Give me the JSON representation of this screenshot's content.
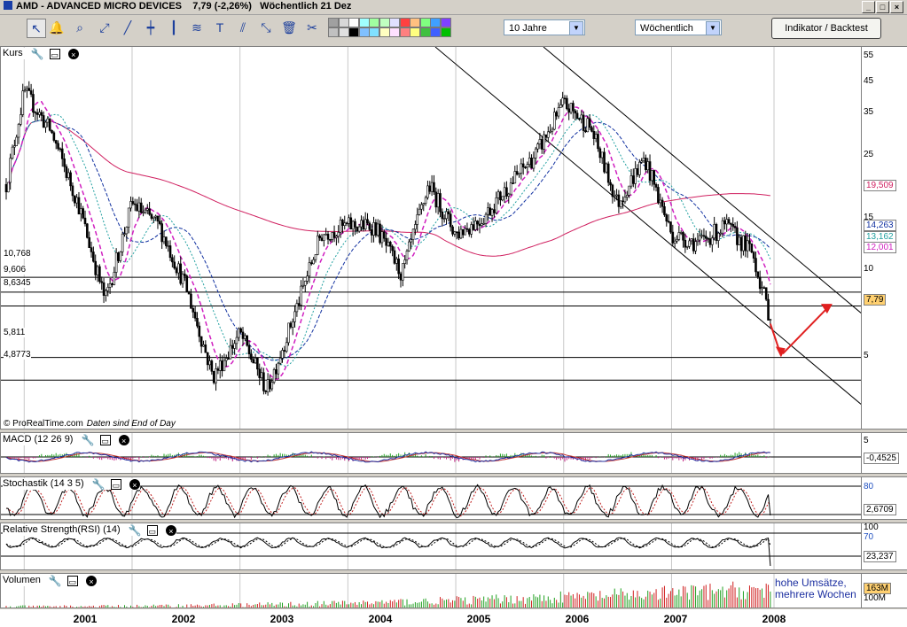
{
  "window": {
    "title": "AMD - ADVANCED MICRO DEVICES",
    "quote": "7,79 (-2,26%)",
    "period_info": "Wöchentlich  21 Dez"
  },
  "toolbar": {
    "icons": [
      "pointer-icon",
      "bell-icon",
      "zoom-icon",
      "trendline-icon",
      "line-icon",
      "horizontal-line-icon",
      "vertical-line-icon",
      "channel-icon",
      "text-icon",
      "fibonacci-icon",
      "regression-icon",
      "trash-icon",
      "tools-icon"
    ],
    "swatch_colors": [
      "#a0a0a0",
      "#c0c0c0",
      "#d8d8d8",
      "#e0e0e0",
      "#ffffff",
      "#000000",
      "#a0ffff",
      "#80c0ff",
      "#a0ffa0",
      "#80e0ff",
      "#c0ffc0",
      "#ffffc0",
      "#e0e0ff",
      "#ffe0ff",
      "#ff4040",
      "#ff8080",
      "#ffc080",
      "#ffff80",
      "#80ff80",
      "#40c040",
      "#40a0ff",
      "#4060ff",
      "#8040ff",
      "#00c000"
    ],
    "range_select": "10 Jahre",
    "interval_select": "Wöchentlich",
    "indicator_button": "Indikator / Backtest"
  },
  "price_panel": {
    "title": "Kurs",
    "y_ticks": [
      "55",
      "45",
      "35",
      "25",
      "15",
      "10",
      "5"
    ],
    "levels": [
      "10,768",
      "9,606",
      "8,6345",
      "5,811",
      "4,8773"
    ],
    "badges": [
      {
        "text": "19,509",
        "color": "#d02060"
      },
      {
        "text": "14,263",
        "color": "#1030a0"
      },
      {
        "text": "13,162",
        "color": "#20a0a0"
      },
      {
        "text": "12,001",
        "color": "#d020c0"
      },
      {
        "text": "7,79",
        "color": "#000000",
        "bg": "#ffd070"
      }
    ],
    "credit": "© ProRealTime.com",
    "credit_note": "Daten sind End of Day"
  },
  "macd_panel": {
    "title": "MACD (12 26 9)",
    "tick": "5",
    "value": "-0,4525"
  },
  "stoch_panel": {
    "title": "Stochastik (14 3 5)",
    "tick": "80",
    "value": "2,6709"
  },
  "rsi_panel": {
    "title": "Relative Strength(RSI) (14)",
    "tick_top": "100",
    "tick": "70",
    "value": "23,237"
  },
  "volume_panel": {
    "title": "Volumen",
    "value": "163M",
    "tick": "100M",
    "note_line1": "hohe Umsätze,",
    "note_line2": "mehrere Wochen"
  },
  "x_axis": [
    "2001",
    "2002",
    "2003",
    "2004",
    "2005",
    "2006",
    "2007",
    "2008"
  ],
  "chart_data": {
    "type": "line",
    "title": "AMD - ADVANCED MICRO DEVICES",
    "x": [
      "2000-11",
      "2001-01",
      "2001-04",
      "2001-07",
      "2001-10",
      "2002-01",
      "2002-04",
      "2002-07",
      "2002-10",
      "2003-01",
      "2003-04",
      "2003-07",
      "2003-10",
      "2004-01",
      "2004-04",
      "2004-07",
      "2004-10",
      "2005-01",
      "2005-04",
      "2005-07",
      "2005-10",
      "2006-01",
      "2006-04",
      "2006-07",
      "2006-10",
      "2007-01",
      "2007-04",
      "2007-07",
      "2007-10",
      "2007-12"
    ],
    "series": [
      {
        "values": [
          22,
          45,
          33,
          19,
          9,
          19,
          16,
          10,
          5,
          7,
          4.5,
          8,
          15,
          16,
          16,
          11,
          22,
          15,
          17,
          22,
          28,
          41,
          34,
          19,
          27,
          15,
          14,
          16,
          13,
          7.79
        ]
      }
    ],
    "y_scale": "log",
    "ylim": [
      3.5,
      60
    ],
    "horizontal_levels": [
      10.768,
      9.606,
      8.6345,
      5.811,
      4.8773
    ],
    "moving_averages": [
      19.509,
      14.263,
      13.162,
      12.001
    ],
    "macd_last": -0.4525,
    "stochastic_last": 2.6709,
    "rsi_last": 23.237,
    "volume_last": "163M",
    "grid": true
  }
}
